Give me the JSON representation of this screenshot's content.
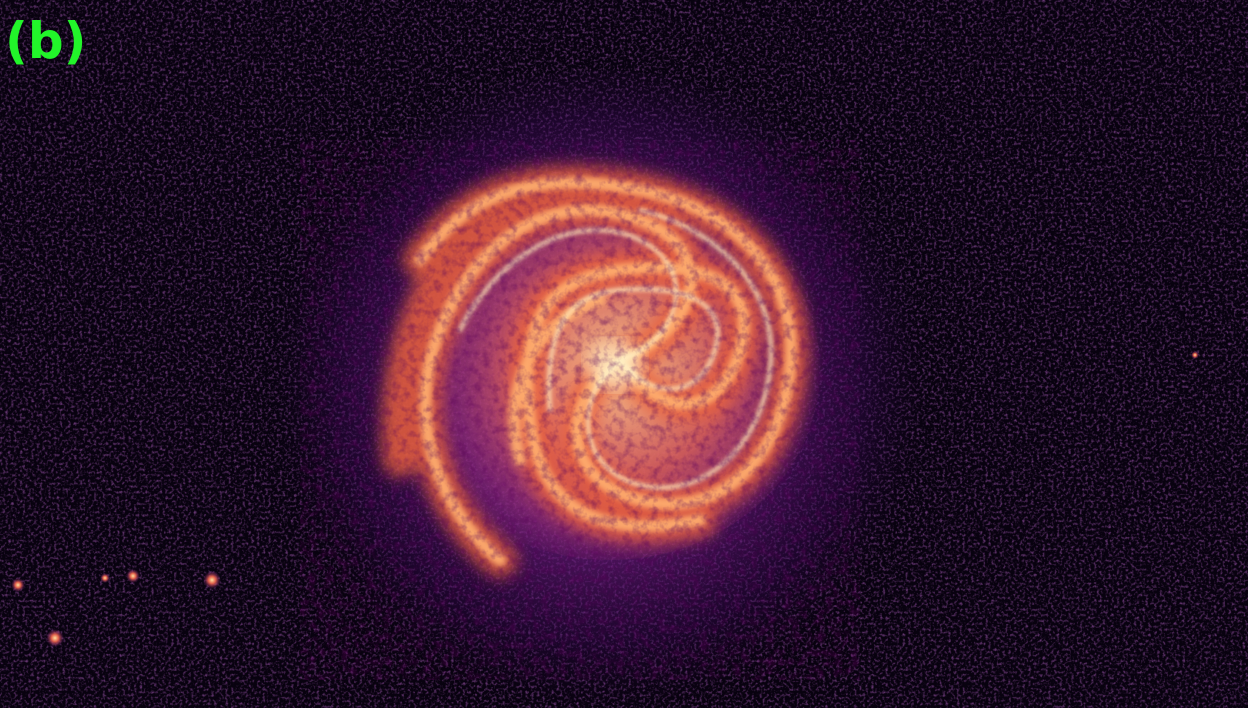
{
  "label": "(b)"
}
